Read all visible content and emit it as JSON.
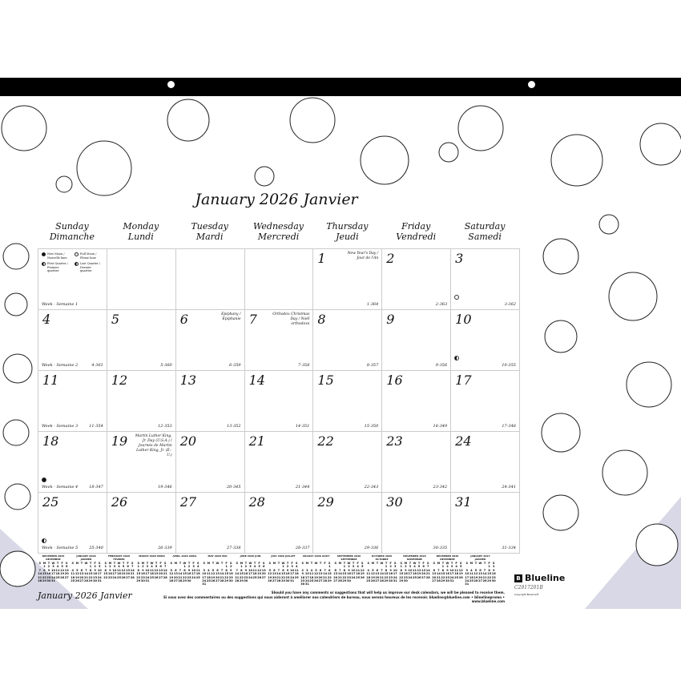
{
  "title": "January 2026 Janvier",
  "weekdays": [
    {
      "en": "Sunday",
      "fr": "Dimanche"
    },
    {
      "en": "Monday",
      "fr": "Lundi"
    },
    {
      "en": "Tuesday",
      "fr": "Mardi"
    },
    {
      "en": "Wednesday",
      "fr": "Mercredi"
    },
    {
      "en": "Thursday",
      "fr": "Jeudi"
    },
    {
      "en": "Friday",
      "fr": "Vendredi"
    },
    {
      "en": "Saturday",
      "fr": "Samedi"
    }
  ],
  "moon_legend": [
    {
      "label": "New Moon / Nouvelle lune",
      "fill": "full"
    },
    {
      "label": "Full Moon / Pleine lune",
      "fill": "empty"
    },
    {
      "label": "First Quarter / Premier quartier",
      "fill": "half"
    },
    {
      "label": "Last Quarter / Dernier quartier",
      "fill": "half"
    }
  ],
  "weeks": [
    "Week - Semaine 1",
    "Week - Semaine 2",
    "Week - Semaine 3",
    "Week - Semaine 4",
    "Week - Semaine 5"
  ],
  "days": [
    {
      "d": 1,
      "count": "1-364",
      "holiday": "New Year's Day / Jour de l'An"
    },
    {
      "d": 2,
      "count": "2-363"
    },
    {
      "d": 3,
      "count": "3-362",
      "moon": "empty"
    },
    {
      "d": 4,
      "count": "4-361"
    },
    {
      "d": 5,
      "count": "5-360"
    },
    {
      "d": 6,
      "count": "6-359",
      "holiday": "Epiphany / Épiphanie"
    },
    {
      "d": 7,
      "count": "7-358",
      "holiday": "Orthodox Christmas Day / Noël orthodoxe"
    },
    {
      "d": 8,
      "count": "8-357"
    },
    {
      "d": 9,
      "count": "9-356"
    },
    {
      "d": 10,
      "count": "10-355",
      "moon": "half"
    },
    {
      "d": 11,
      "count": "11-354"
    },
    {
      "d": 12,
      "count": "12-353"
    },
    {
      "d": 13,
      "count": "13-352"
    },
    {
      "d": 14,
      "count": "14-351"
    },
    {
      "d": 15,
      "count": "15-350"
    },
    {
      "d": 16,
      "count": "16-349"
    },
    {
      "d": 17,
      "count": "17-348"
    },
    {
      "d": 18,
      "count": "18-347",
      "moon": "full"
    },
    {
      "d": 19,
      "count": "19-346",
      "holiday": "Martin Luther King, Jr. Day (U.S.A.) / Journée de Martin Luther King, Jr. (É.-U.)"
    },
    {
      "d": 20,
      "count": "20-345"
    },
    {
      "d": 21,
      "count": "21-344"
    },
    {
      "d": 22,
      "count": "22-343"
    },
    {
      "d": 23,
      "count": "23-342"
    },
    {
      "d": 24,
      "count": "24-341"
    },
    {
      "d": 25,
      "count": "25-340",
      "moon": "half"
    },
    {
      "d": 26,
      "count": "26-339"
    },
    {
      "d": 27,
      "count": "27-338"
    },
    {
      "d": 28,
      "count": "28-337"
    },
    {
      "d": 29,
      "count": "29-336"
    },
    {
      "d": 30,
      "count": "30-335"
    },
    {
      "d": 31,
      "count": "31-334"
    }
  ],
  "mini_header": "S M T W T F S",
  "mini_months": [
    {
      "label": "DECEMBER 2025 DÉCEMBRE",
      "y": 2025,
      "m": 12
    },
    {
      "label": "JANUARY 2026 JANVIER",
      "y": 2026,
      "m": 1
    },
    {
      "label": "FEBRUARY 2026 FÉVRIER",
      "y": 2026,
      "m": 2
    },
    {
      "label": "MARCH 2026 MARS",
      "y": 2026,
      "m": 3
    },
    {
      "label": "APRIL 2026 AVRIL",
      "y": 2026,
      "m": 4
    },
    {
      "label": "MAY 2026 MAI",
      "y": 2026,
      "m": 5
    },
    {
      "label": "JUNE 2026 JUIN",
      "y": 2026,
      "m": 6
    },
    {
      "label": "JULY 2026 JUILLET",
      "y": 2026,
      "m": 7
    },
    {
      "label": "AUGUST 2026 AOÛT",
      "y": 2026,
      "m": 8
    },
    {
      "label": "SEPTEMBER 2026 SEPTEMBRE",
      "y": 2026,
      "m": 9
    },
    {
      "label": "OCTOBER 2026 OCTOBRE",
      "y": 2026,
      "m": 10
    },
    {
      "label": "NOVEMBER 2026 NOVEMBRE",
      "y": 2026,
      "m": 11
    },
    {
      "label": "DECEMBER 2026 DÉCEMBRE",
      "y": 2026,
      "m": 12
    },
    {
      "label": "JANUARY 2027 JANVIER",
      "y": 2027,
      "m": 1
    }
  ],
  "footer": {
    "title": "January 2026 Janvier",
    "en": "Should you have any comments or suggestions that will help us improve our desk calendars, we will be pleased to receive them.",
    "fr": "Si vous avez des commentaires ou des suggestions qui nous aideront à améliorer nos calendriers de bureau, nous serons heureux de les recevoir. blueline@blueline.com • blinelinepromo • www.blueline.com"
  },
  "brand": {
    "name": "Blueline",
    "code": "C2917201B",
    "copyright": "Copyright Blueline®"
  },
  "colors": {
    "bar": "#000000",
    "accent": "#d8d8e6",
    "grid": "#cccccc"
  }
}
